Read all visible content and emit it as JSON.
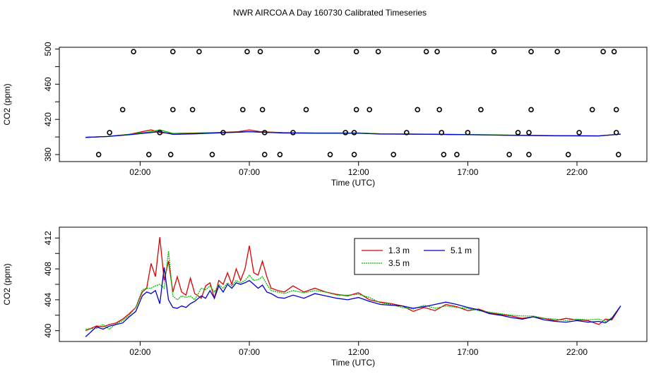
{
  "title": "NWR AIRCOA A  Day 160730  Calibrated Timeseries",
  "colors": {
    "red": "#dd0000",
    "green": "#00bb00",
    "blue": "#0000cc",
    "points": "#000000"
  },
  "chart_data": [
    {
      "type": "scatter",
      "xlabel": "Time (UTC)",
      "ylabel": "CO2 (ppm)",
      "xlim": [
        -1.7,
        25.2
      ],
      "ylim": [
        372,
        502
      ],
      "xticks": [
        2,
        7,
        12,
        17,
        22
      ],
      "xtick_labels": [
        "02:00",
        "07:00",
        "12:00",
        "17:00",
        "22:00"
      ],
      "yticks": [
        380,
        420,
        460,
        500
      ],
      "ytick_minor": [
        400,
        440,
        480
      ],
      "ytick_labels": [
        "380",
        "420",
        "460",
        "500"
      ],
      "grid": false,
      "points": [
        [
          0.1,
          380
        ],
        [
          0.6,
          405
        ],
        [
          1.2,
          431
        ],
        [
          1.7,
          497
        ],
        [
          2.4,
          380
        ],
        [
          2.9,
          405
        ],
        [
          3.4,
          380
        ],
        [
          3.5,
          497
        ],
        [
          3.5,
          431
        ],
        [
          4.4,
          431
        ],
        [
          4.7,
          497
        ],
        [
          5.3,
          380
        ],
        [
          5.8,
          405
        ],
        [
          6.7,
          431
        ],
        [
          6.9,
          497
        ],
        [
          7.5,
          497
        ],
        [
          7.6,
          431
        ],
        [
          7.7,
          405
        ],
        [
          7.7,
          380
        ],
        [
          8.4,
          380
        ],
        [
          9.0,
          405
        ],
        [
          9.6,
          431
        ],
        [
          10.1,
          497
        ],
        [
          10.7,
          380
        ],
        [
          11.4,
          405
        ],
        [
          11.8,
          405
        ],
        [
          11.8,
          380
        ],
        [
          11.9,
          431
        ],
        [
          11.9,
          497
        ],
        [
          12.5,
          431
        ],
        [
          12.9,
          497
        ],
        [
          13.6,
          380
        ],
        [
          14.2,
          405
        ],
        [
          14.7,
          431
        ],
        [
          15.1,
          497
        ],
        [
          15.6,
          497
        ],
        [
          15.7,
          431
        ],
        [
          15.8,
          405
        ],
        [
          15.9,
          380
        ],
        [
          16.5,
          380
        ],
        [
          17.0,
          405
        ],
        [
          17.6,
          431
        ],
        [
          18.2,
          497
        ],
        [
          18.9,
          380
        ],
        [
          19.3,
          405
        ],
        [
          19.8,
          405
        ],
        [
          19.8,
          380
        ],
        [
          19.9,
          431
        ],
        [
          19.9,
          497
        ],
        [
          21.1,
          497
        ],
        [
          21.6,
          380
        ],
        [
          22.1,
          405
        ],
        [
          22.7,
          431
        ],
        [
          23.2,
          497
        ],
        [
          23.7,
          497
        ],
        [
          23.8,
          431
        ],
        [
          23.8,
          405
        ],
        [
          23.9,
          380
        ]
      ],
      "series": [
        {
          "color": "red",
          "x": [
            -0.5,
            0.5,
            1.5,
            2.5,
            2.9,
            3.5,
            4.5,
            5.5,
            6.5,
            7.0,
            7.5,
            8.5,
            10,
            11,
            12,
            13,
            15,
            17,
            19,
            21,
            23,
            24
          ],
          "values": [
            399.5,
            400.6,
            403,
            408,
            405,
            404,
            404.5,
            405,
            406,
            408,
            406,
            405,
            404.5,
            404.5,
            404.5,
            403.5,
            403.2,
            402.6,
            402.0,
            401.5,
            401.2,
            403.2
          ]
        },
        {
          "color": "green",
          "x": [
            -0.5,
            0.5,
            1.5,
            2.5,
            2.9,
            3.5,
            4.5,
            5.5,
            6.5,
            7.0,
            7.5,
            8.5,
            10,
            11,
            12,
            13,
            15,
            17,
            19,
            21,
            23,
            24
          ],
          "values": [
            399.5,
            400.6,
            403,
            406,
            408,
            404,
            404,
            405,
            405.5,
            406,
            405.5,
            405,
            404.5,
            404.5,
            404.5,
            403.5,
            403.2,
            402.7,
            402.1,
            401.6,
            401.3,
            403.2
          ]
        },
        {
          "color": "blue",
          "x": [
            -0.5,
            0.5,
            1.5,
            2.5,
            2.9,
            3.5,
            4.5,
            5.5,
            6.5,
            7.0,
            7.5,
            8.5,
            10,
            11,
            12,
            13,
            15,
            17,
            19,
            21,
            23,
            24
          ],
          "values": [
            399.5,
            400.5,
            402.5,
            405,
            406,
            403,
            403.5,
            404.5,
            405.5,
            406,
            405.5,
            404.5,
            404.2,
            404.2,
            404.2,
            403.3,
            403.1,
            402.6,
            401.8,
            401.3,
            401.2,
            403.2
          ]
        }
      ]
    },
    {
      "type": "line",
      "xlabel": "Time (UTC)",
      "ylabel": "CO2 (ppm)",
      "xlim": [
        -1.7,
        25.2
      ],
      "ylim": [
        398.6,
        413.4
      ],
      "xticks": [
        2,
        7,
        12,
        17,
        22
      ],
      "xtick_labels": [
        "02:00",
        "07:00",
        "12:00",
        "17:00",
        "22:00"
      ],
      "yticks": [
        400,
        404,
        408,
        412
      ],
      "ytick_minor": [
        402,
        406,
        410
      ],
      "ytick_labels": [
        "400",
        "404",
        "408",
        "412"
      ],
      "grid": false,
      "legend_position": "top-center",
      "series": [
        {
          "name": "1.3 m",
          "color": "red",
          "x": [
            -0.5,
            0.0,
            0.3,
            0.6,
            0.9,
            1.2,
            1.5,
            1.8,
            2.1,
            2.3,
            2.5,
            2.7,
            2.9,
            3.1,
            3.3,
            3.5,
            3.7,
            3.9,
            4.1,
            4.3,
            4.5,
            4.8,
            5.0,
            5.2,
            5.4,
            5.6,
            5.8,
            6.0,
            6.2,
            6.4,
            6.6,
            6.8,
            7.0,
            7.2,
            7.4,
            7.6,
            7.8,
            8.0,
            8.3,
            8.6,
            9.0,
            9.5,
            10.0,
            10.5,
            11.0,
            11.5,
            12.0,
            12.5,
            13.0,
            13.5,
            14.0,
            14.5,
            15.0,
            15.5,
            16.0,
            16.5,
            17.0,
            17.5,
            18.0,
            18.5,
            19.0,
            19.5,
            20.0,
            20.5,
            21.0,
            21.5,
            22.0,
            22.5,
            23.0,
            23.3,
            23.6,
            24.0
          ],
          "values": [
            400.0,
            400.6,
            400.5,
            400.8,
            401.0,
            401.5,
            402.2,
            403.0,
            405.0,
            405.5,
            408.7,
            407.0,
            412.1,
            406.5,
            409.0,
            405.0,
            407.0,
            405.0,
            404.6,
            406.8,
            404.8,
            404.2,
            405.8,
            406.2,
            404.2,
            406.5,
            406.0,
            407.5,
            406.0,
            408.0,
            406.5,
            408.0,
            411.0,
            407.5,
            407.2,
            409.0,
            407.0,
            405.5,
            405.2,
            405.0,
            405.8,
            405.0,
            405.5,
            405.0,
            404.7,
            404.5,
            404.9,
            404.0,
            403.7,
            403.5,
            403.2,
            402.5,
            403.0,
            402.6,
            403.4,
            403.1,
            402.6,
            402.8,
            402.3,
            402.1,
            401.9,
            401.6,
            401.8,
            401.6,
            401.3,
            401.6,
            401.4,
            401.3,
            400.8,
            401.5,
            401.4,
            403.2
          ]
        },
        {
          "name": "3.5 m",
          "color": "green",
          "x": [
            -0.5,
            0.0,
            0.3,
            0.6,
            0.9,
            1.2,
            1.5,
            1.8,
            2.1,
            2.3,
            2.5,
            2.7,
            2.9,
            3.1,
            3.3,
            3.5,
            3.7,
            3.9,
            4.1,
            4.3,
            4.5,
            4.8,
            5.0,
            5.2,
            5.4,
            5.6,
            5.8,
            6.0,
            6.2,
            6.4,
            6.6,
            6.8,
            7.0,
            7.2,
            7.4,
            7.6,
            7.8,
            8.0,
            8.3,
            8.6,
            9.0,
            9.5,
            10.0,
            10.5,
            11.0,
            11.5,
            12.0,
            12.5,
            13.0,
            13.5,
            14.0,
            14.5,
            15.0,
            15.5,
            16.0,
            16.5,
            17.0,
            17.5,
            18.0,
            18.5,
            19.0,
            19.5,
            20.0,
            20.5,
            21.0,
            21.5,
            22.0,
            22.5,
            23.0,
            23.3,
            23.6,
            24.0
          ],
          "values": [
            400.2,
            400.3,
            400.8,
            400.2,
            400.9,
            401.3,
            402.0,
            403.0,
            405.3,
            405.5,
            405.5,
            405.8,
            406.0,
            405.5,
            410.3,
            404.5,
            404.0,
            404.5,
            404.3,
            404.5,
            404.0,
            405.5,
            405.3,
            405.8,
            405.0,
            406.0,
            405.5,
            406.2,
            405.8,
            406.5,
            406.2,
            406.5,
            407.2,
            406.5,
            406.6,
            407.0,
            406.0,
            405.2,
            405.0,
            404.8,
            405.2,
            404.9,
            405.2,
            405.0,
            404.6,
            404.6,
            404.7,
            404.3,
            403.6,
            403.4,
            403.0,
            402.8,
            403.3,
            402.9,
            403.2,
            403.0,
            402.9,
            402.6,
            402.4,
            402.2,
            402.0,
            401.9,
            401.9,
            401.6,
            401.5,
            401.3,
            401.5,
            401.4,
            401.5,
            401.2,
            401.7,
            403.2
          ]
        },
        {
          "name": "5.1 m",
          "color": "blue",
          "x": [
            -0.5,
            0.0,
            0.3,
            0.6,
            0.9,
            1.2,
            1.5,
            1.8,
            2.1,
            2.3,
            2.5,
            2.7,
            2.9,
            3.1,
            3.3,
            3.5,
            3.7,
            3.9,
            4.1,
            4.3,
            4.5,
            4.8,
            5.0,
            5.2,
            5.4,
            5.6,
            5.8,
            6.0,
            6.2,
            6.4,
            6.6,
            6.8,
            7.0,
            7.2,
            7.4,
            7.6,
            7.8,
            8.0,
            8.3,
            8.6,
            9.0,
            9.5,
            10.0,
            10.5,
            11.0,
            11.5,
            12.0,
            12.5,
            13.0,
            13.5,
            14.0,
            14.5,
            15.0,
            15.5,
            16.0,
            16.5,
            17.0,
            17.5,
            18.0,
            18.5,
            19.0,
            19.5,
            20.0,
            20.5,
            21.0,
            21.5,
            22.0,
            22.5,
            23.0,
            23.3,
            23.6,
            24.0
          ],
          "values": [
            399.2,
            400.5,
            400.2,
            400.6,
            400.8,
            401.0,
            401.8,
            402.5,
            404.5,
            405.0,
            404.8,
            405.2,
            403.5,
            408.2,
            404.0,
            403.0,
            402.9,
            403.2,
            403.0,
            403.5,
            403.8,
            404.5,
            404.2,
            405.2,
            404.2,
            405.8,
            405.0,
            406.0,
            405.5,
            406.2,
            406.0,
            406.2,
            406.5,
            406.0,
            405.5,
            405.9,
            405.0,
            404.8,
            404.3,
            404.2,
            404.6,
            404.2,
            404.8,
            404.5,
            404.2,
            404.0,
            404.3,
            403.8,
            403.4,
            403.3,
            403.2,
            402.9,
            403.1,
            403.4,
            403.7,
            403.4,
            403.0,
            402.7,
            402.2,
            402.0,
            401.7,
            401.5,
            401.8,
            401.4,
            401.2,
            401.1,
            401.3,
            401.1,
            401.2,
            401.0,
            401.6,
            403.2
          ]
        }
      ]
    }
  ]
}
